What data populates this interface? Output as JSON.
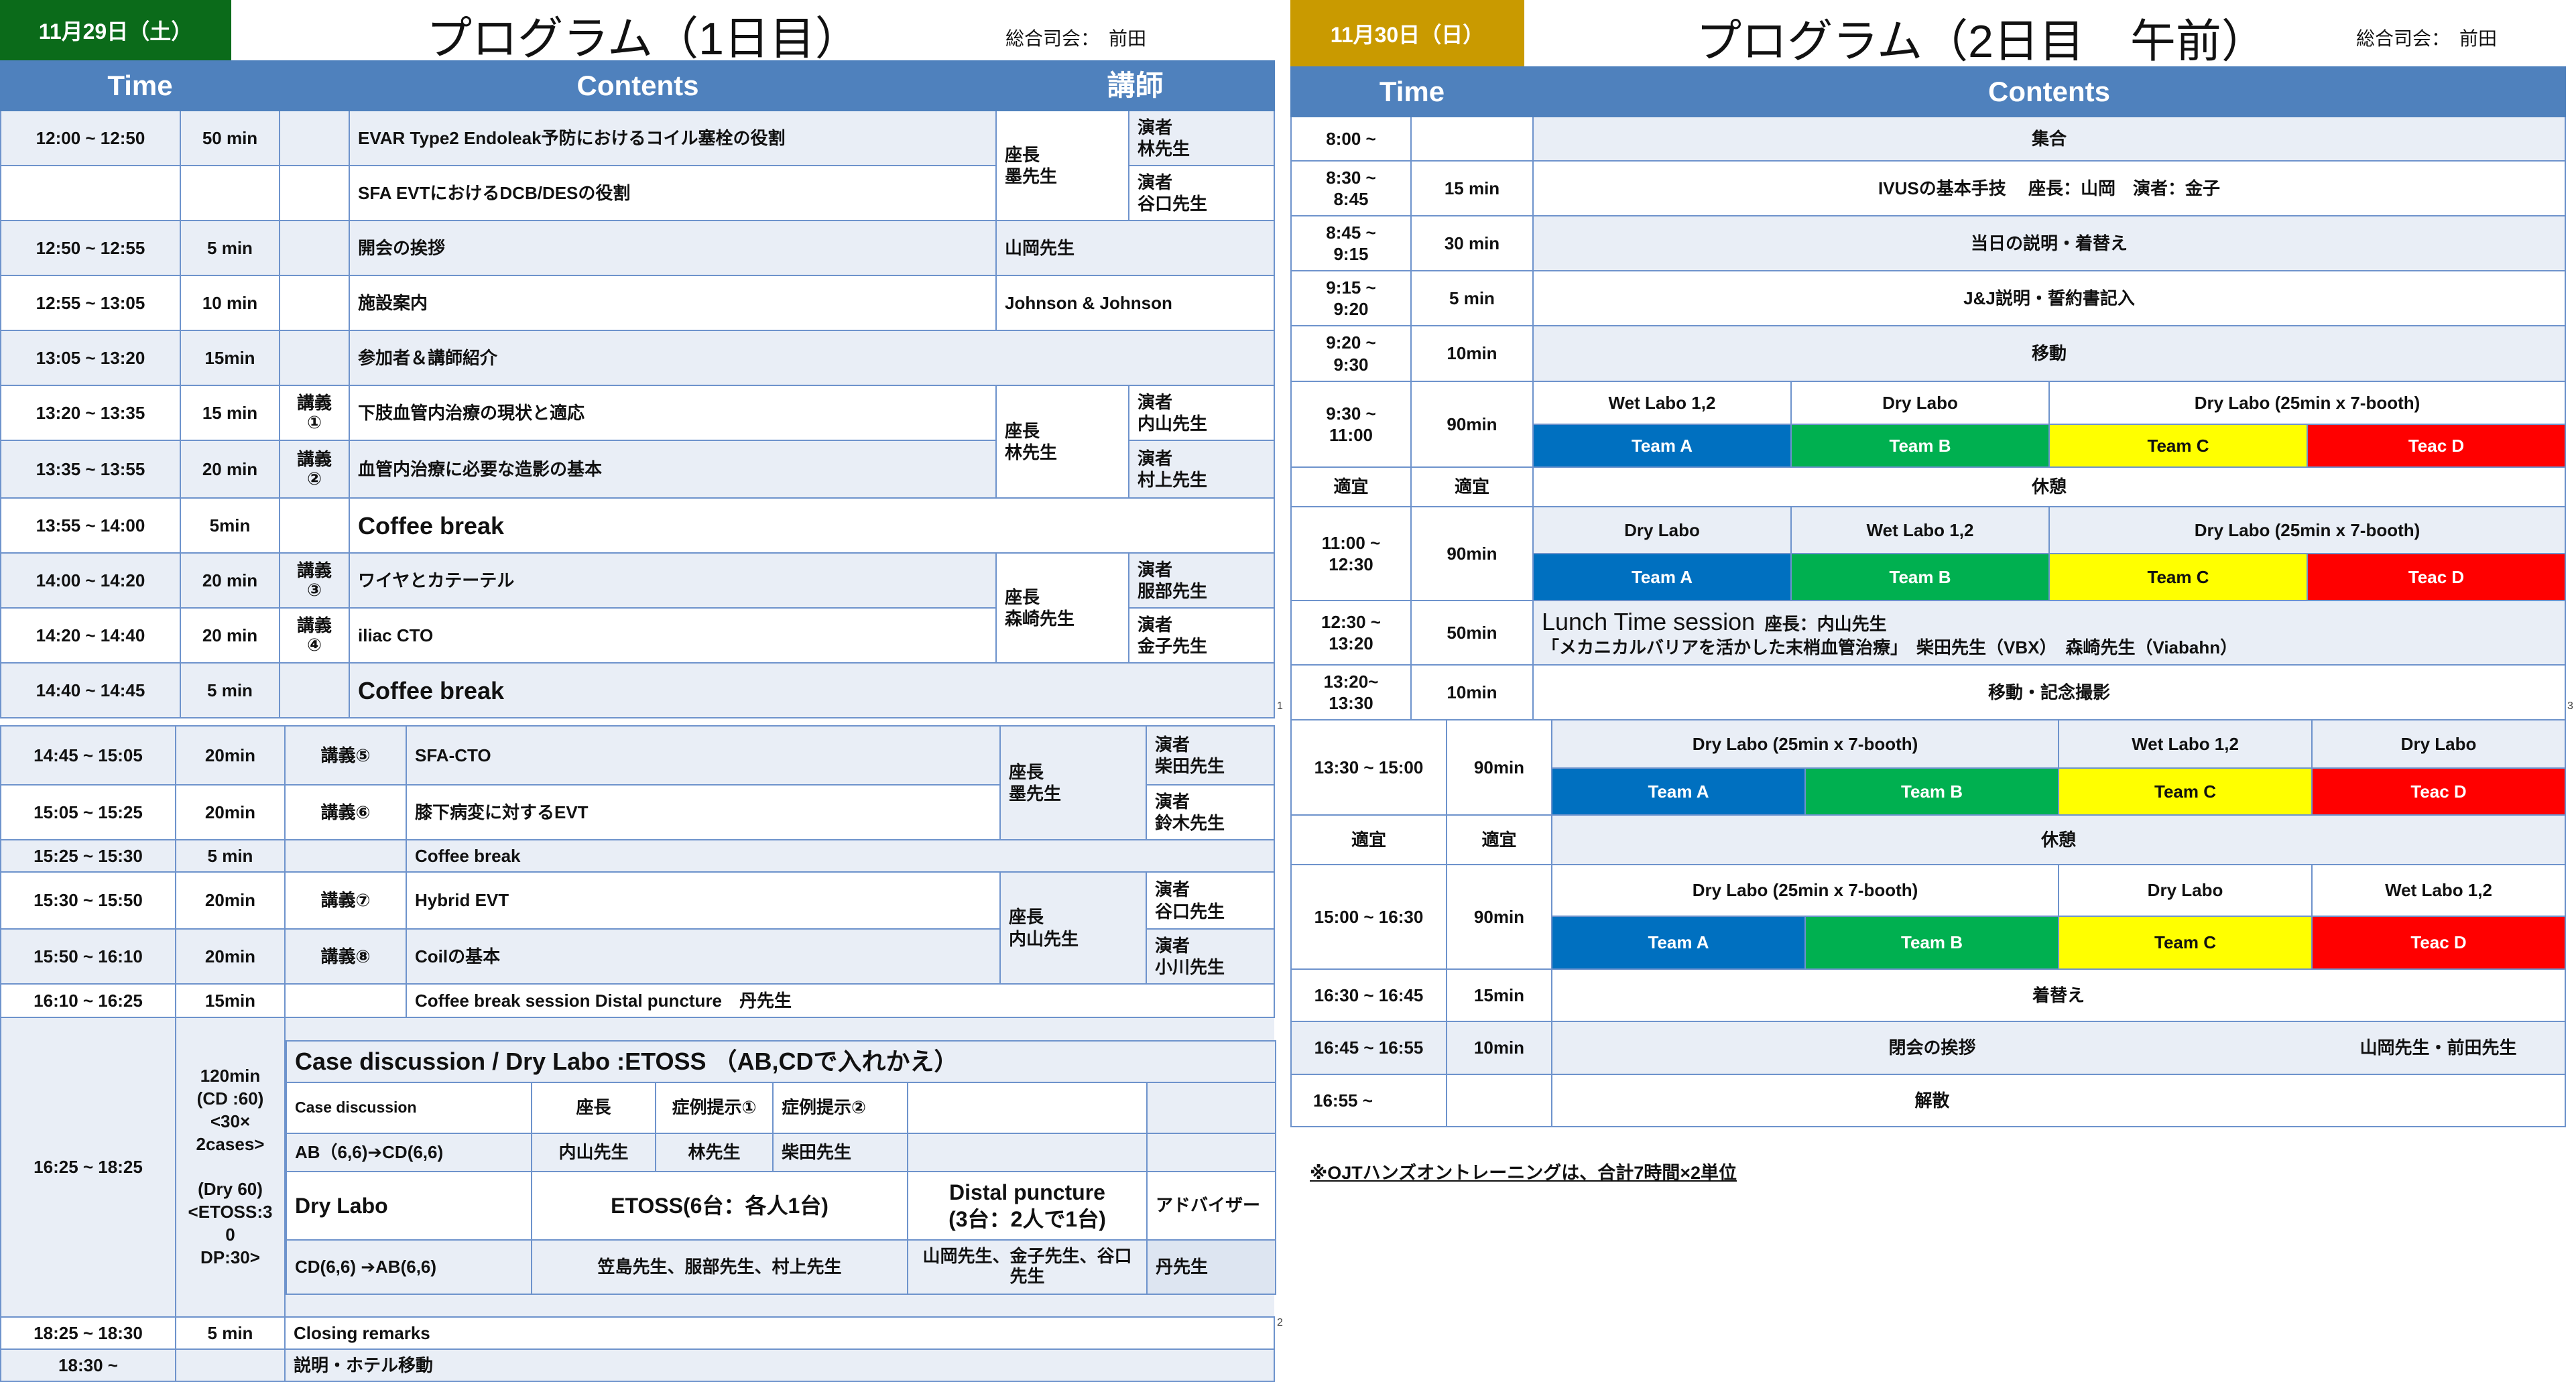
{
  "colors": {
    "header": "#4f81bd",
    "row_light": "#e9eef6",
    "day1_badge": "#0b6b1a",
    "day2_badge": "#c99a00",
    "team_a": "#0070c0",
    "team_b": "#00b050",
    "team_c": "#ffff00",
    "team_d": "#ff0000"
  },
  "day1": {
    "date": "11月29日（土）",
    "title": "プログラム（1日目）",
    "mc": "総合司会：　前田",
    "headers": {
      "time": "Time",
      "contents": "Contents",
      "lecturer": "講師"
    },
    "rows": [
      {
        "time": "12:00 ~ 12:50",
        "dur": "50 min",
        "content": "EVAR Type2 Endoleak予防におけるコイル塞栓の役割",
        "chair": "座長\n墨先生",
        "speaker": "演者\n林先生"
      },
      {
        "content": "SFA EVTにおけるDCB/DESの役割",
        "speaker": "演者\n谷口先生"
      },
      {
        "time": "12:50 ~ 12:55",
        "dur": "5 min",
        "content": "開会の挨拶",
        "lecturer": "山岡先生"
      },
      {
        "time": "12:55 ~ 13:05",
        "dur": "10 min",
        "content": "施設案内",
        "lecturer": "Johnson & Johnson"
      },
      {
        "time": "13:05 ~ 13:20",
        "dur": "15min",
        "content": "参加者＆講師紹介"
      },
      {
        "time": "13:20 ~ 13:35",
        "dur": "15 min",
        "lecture": "講義\n①",
        "content": "下肢血管内治療の現状と適応",
        "chair": "座長\n林先生",
        "speaker": "演者\n内山先生"
      },
      {
        "time": "13:35 ~ 13:55",
        "dur": "20 min",
        "lecture": "講義\n②",
        "content": "血管内治療に必要な造影の基本",
        "speaker": "演者\n村上先生"
      },
      {
        "time": "13:55 ~ 14:00",
        "dur": "5min",
        "content": "Coffee break"
      },
      {
        "time": "14:00 ~ 14:20",
        "dur": "20 min",
        "lecture": "講義\n③",
        "content": "ワイヤとカテーテル",
        "chair": "座長\n森崎先生",
        "speaker": "演者\n服部先生"
      },
      {
        "time": "14:20 ~ 14:40",
        "dur": "20 min",
        "lecture": "講義\n④",
        "content": "iliac CTO",
        "speaker": "演者\n金子先生"
      },
      {
        "time": "14:40 ~ 14:45",
        "dur": "5 min",
        "content": "Coffee break"
      }
    ],
    "page": "1"
  },
  "day1b": {
    "rows": [
      {
        "time": "14:45 ~ 15:05",
        "dur": "20min",
        "lecture": "講義⑤",
        "content": "SFA-CTO",
        "chair": "座長\n墨先生",
        "speaker": "演者\n柴田先生"
      },
      {
        "time": "15:05 ~ 15:25",
        "dur": "20min",
        "lecture": "講義⑥",
        "content": "膝下病変に対するEVT",
        "speaker": "演者\n鈴木先生"
      },
      {
        "time": "15:25 ~ 15:30",
        "dur": "5 min",
        "content": "Coffee break"
      },
      {
        "time": "15:30 ~ 15:50",
        "dur": "20min",
        "lecture": "講義⑦",
        "content": "Hybrid EVT",
        "chair": "座長\n内山先生",
        "speaker": "演者\n谷口先生"
      },
      {
        "time": "15:50 ~ 16:10",
        "dur": "20min",
        "lecture": "講義⑧",
        "content": "Coilの基本",
        "speaker": "演者\n小川先生"
      },
      {
        "time": "16:10 ~ 16:25",
        "dur": "15min",
        "content": "Coffee break session Distal puncture　丹先生"
      }
    ],
    "case": {
      "time": "16:25 ~ 18:25",
      "dur": "120min\n(CD :60)\n<30×\n2cases>\n\n(Dry 60)\n<ETOSS:3\n0\nDP:30>",
      "title": "Case discussion / Dry Labo :ETOSS （AB,CDで入れかえ）",
      "cd_header": [
        "Case discussion",
        "座長",
        "症例提示①",
        "症例提示②"
      ],
      "ab_row": [
        "AB（6,6)➔CD(6,6)",
        "内山先生",
        "林先生",
        "柴田先生"
      ],
      "dry_row": [
        "Dry Labo",
        "ETOSS(6台：各人1台)",
        "Distal puncture\n(3台：2人で1台)",
        "アドバイザー"
      ],
      "cd_row": [
        "CD(6,6) ➔AB(6,6)",
        "笠島先生、服部先生、村上先生",
        "山岡先生、金子先生、谷口先生",
        "丹先生"
      ]
    },
    "closing": {
      "time": "18:25 ~ 18:30",
      "dur": "5 min",
      "content": "Closing remarks"
    },
    "last": {
      "time": "18:30 ~",
      "content": "説明・ホテル移動"
    },
    "page": "2"
  },
  "day2": {
    "date": "11月30日（日）",
    "title": "プログラム（2日目　午前）",
    "mc": "総合司会：　前田",
    "headers": {
      "time": "Time",
      "contents": "Contents"
    },
    "rows": [
      {
        "time": "8:00 ~",
        "content": "集合"
      },
      {
        "time": "8:30 ~\n8:45",
        "dur": "15 min",
        "content": "IVUSの基本手技　 座長：山岡　演者：金子"
      },
      {
        "time": "8:45 ~\n9:15",
        "dur": "30 min",
        "content": "当日の説明・着替え"
      },
      {
        "time": "9:15 ~\n9:20",
        "dur": "5 min",
        "content": "J&J説明・誓約書記入"
      },
      {
        "time": "9:20 ~\n9:30",
        "dur": "10min",
        "content": "移動"
      }
    ],
    "s1": {
      "time": "9:30 ~\n11:00",
      "dur": "90min",
      "labs": [
        "Wet Labo 1,2",
        "Dry Labo",
        "Dry Labo (25min x 7-booth)"
      ]
    },
    "break1": {
      "time": "適宜",
      "dur": "適宜",
      "content": "休憩"
    },
    "s2": {
      "time": "11:00 ~\n12:30",
      "dur": "90min",
      "labs": [
        "Dry Labo",
        "Wet Labo 1,2",
        "Dry Labo (25min x 7-booth)"
      ]
    },
    "lunch": {
      "time": "12:30 ~\n13:20",
      "dur": "50min",
      "title": "Lunch Time session",
      "chair": "座長：内山先生",
      "detail": "「メカニカルバリアを活かした末梢血管治療」　柴田先生（VBX）　森崎先生（Viabahn）"
    },
    "move": {
      "time": "13:20~\n13:30",
      "dur": "10min",
      "content": "移動・記念撮影"
    },
    "teams": [
      "Team A",
      "Team B",
      "Team C",
      "Teac D"
    ],
    "page": "3"
  },
  "day2b": {
    "s3": {
      "time": "13:30 ~ 15:00",
      "dur": "90min",
      "labs": [
        "Dry Labo (25min x 7-booth)",
        "Wet Labo 1,2",
        "Dry Labo"
      ]
    },
    "break2": {
      "time": "適宜",
      "dur": "適宜",
      "content": "休憩"
    },
    "s4": {
      "time": "15:00 ~ 16:30",
      "dur": "90min",
      "labs": [
        "Dry Labo (25min x 7-booth)",
        "Dry Labo",
        "Wet Labo 1,2"
      ]
    },
    "change": {
      "time": "16:30 ~ 16:45",
      "dur": "15min",
      "content": "着替え"
    },
    "closing": {
      "time": "16:45 ~ 16:55",
      "dur": "10min",
      "content": "閉会の挨拶",
      "speakers": "山岡先生・前田先生"
    },
    "end": {
      "time": "16:55 ~",
      "content": "解散"
    },
    "note": "※OJTハンズオントレーニングは、合計7時間×2単位"
  }
}
